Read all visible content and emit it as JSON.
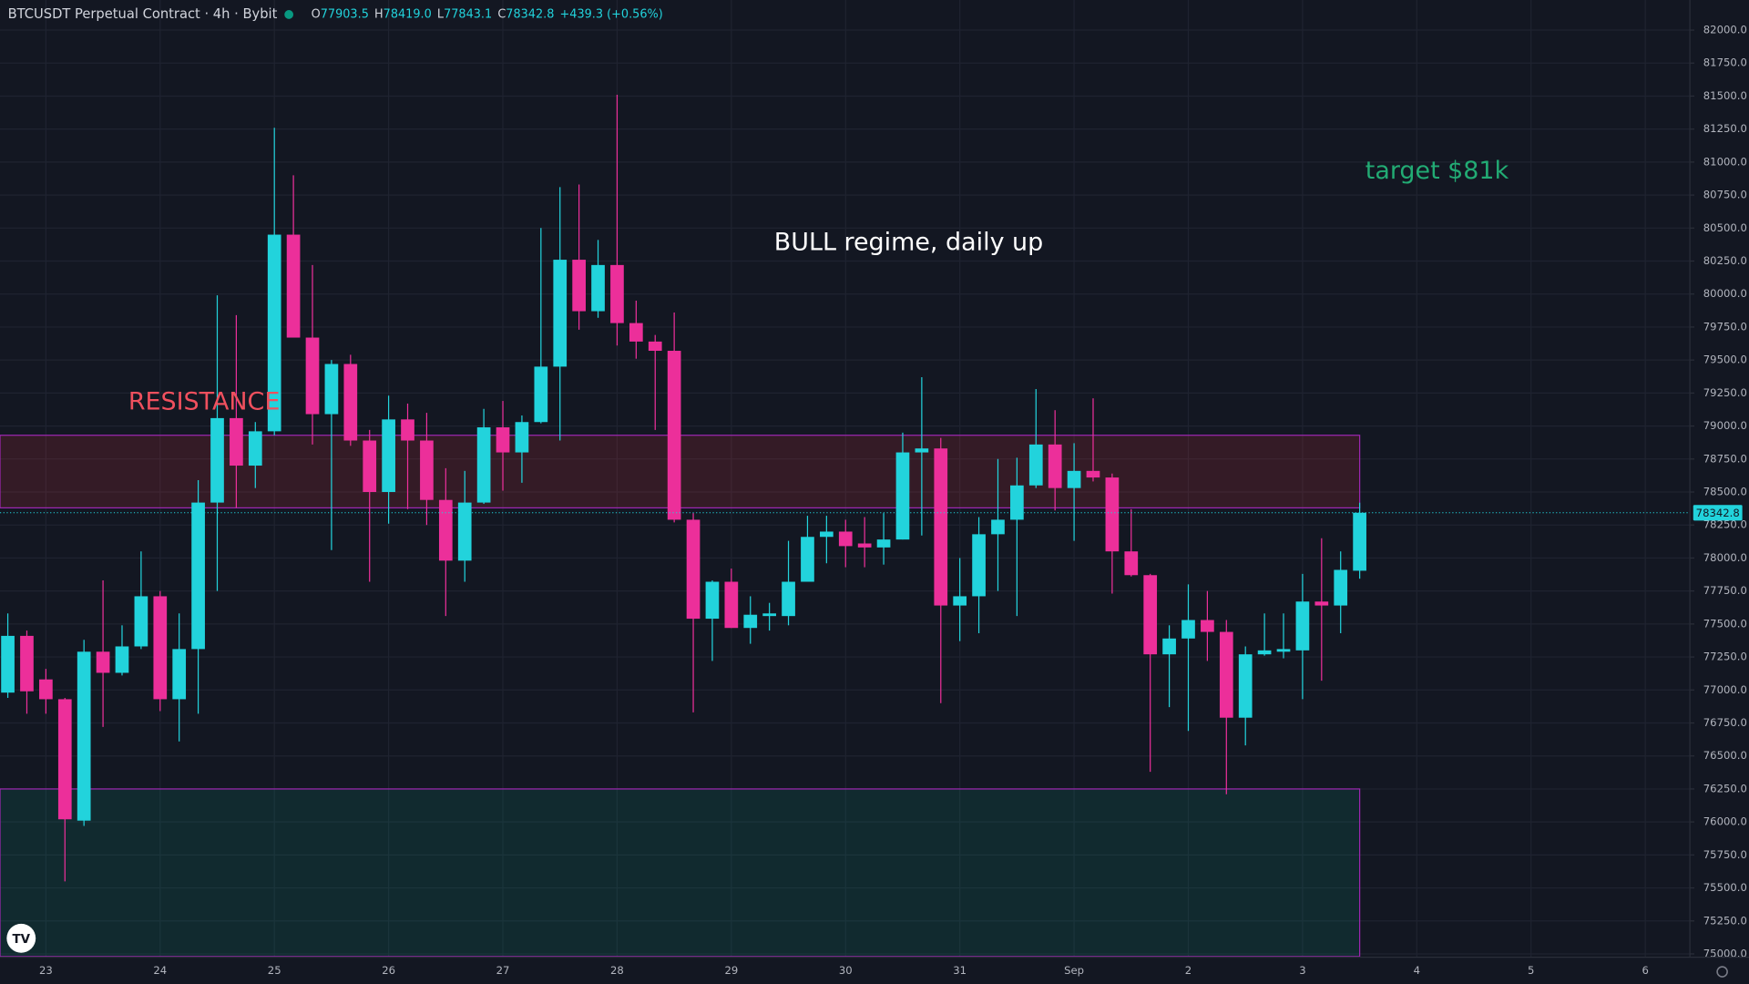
{
  "chart_data": {
    "type": "candlestick",
    "header": {
      "symbol": "BTCUSDT Perpetual Contract · 4h · Bybit",
      "ohlc": [
        {
          "label": "O",
          "value": "77903.5"
        },
        {
          "label": "H",
          "value": "78419.0"
        },
        {
          "label": "L",
          "value": "77843.1"
        },
        {
          "label": "C",
          "value": "78342.8"
        }
      ],
      "change": "+439.3 (+0.56%)"
    },
    "categories": [
      "23",
      "24",
      "25",
      "26",
      "27",
      "28",
      "29",
      "30",
      "31",
      "Sep",
      "2",
      "3",
      "4",
      "5",
      "6"
    ],
    "open": [
      76980,
      77410,
      77080,
      76930,
      76010,
      77290,
      77130,
      77330,
      77710,
      76930,
      77310,
      78420,
      79060,
      78700,
      78960,
      80450,
      79670,
      79090,
      79470,
      78890,
      78500,
      79050,
      78890,
      78440,
      77980,
      78420,
      78990,
      78800,
      79030,
      79450,
      80260,
      79870,
      80220,
      79780,
      79640,
      79570,
      78290,
      77540,
      77820,
      77470,
      77560,
      77560,
      77820,
      78160,
      78200,
      78110,
      78080,
      78140,
      78800,
      78830,
      77640,
      77710,
      78180,
      78290,
      78550,
      78860,
      78530,
      78660,
      78610,
      78050,
      77870,
      77270,
      77390,
      77530,
      77440,
      76790,
      77270,
      77290,
      77300,
      77670,
      77640,
      77903.5
    ],
    "high": [
      77580,
      77450,
      77160,
      76940,
      77380,
      77830,
      77490,
      78050,
      77750,
      77580,
      78590,
      79990,
      79840,
      79030,
      81260,
      80900,
      80220,
      79500,
      79540,
      78970,
      79230,
      79170,
      79100,
      78680,
      78660,
      79130,
      79190,
      79080,
      80500,
      80810,
      80830,
      80410,
      81510,
      79950,
      79690,
      79860,
      78340,
      77830,
      77920,
      77710,
      77660,
      78130,
      78320,
      78320,
      78290,
      78310,
      78340,
      78950,
      79370,
      78910,
      78000,
      78310,
      78750,
      78760,
      79280,
      79120,
      78870,
      79210,
      78640,
      78370,
      77880,
      77490,
      77800,
      77750,
      77530,
      77330,
      77580,
      77580,
      77880,
      78150,
      78050,
      78419.0
    ],
    "low": [
      76940,
      76820,
      76820,
      75550,
      75970,
      76720,
      77110,
      77310,
      76840,
      76610,
      76820,
      77750,
      78380,
      78530,
      78930,
      79670,
      78860,
      78060,
      78850,
      77820,
      78260,
      78370,
      78250,
      77560,
      77820,
      78410,
      78510,
      78570,
      79020,
      78890,
      79730,
      79820,
      79610,
      79510,
      78970,
      78270,
      76830,
      77220,
      77470,
      77350,
      77450,
      77490,
      77820,
      77960,
      77930,
      77930,
      77950,
      78140,
      78170,
      76900,
      77370,
      77430,
      77750,
      77560,
      78530,
      78360,
      78130,
      78580,
      77730,
      77860,
      76380,
      76870,
      76690,
      77220,
      76210,
      76580,
      77260,
      77240,
      76930,
      77070,
      77430,
      77843.1
    ],
    "close": [
      77410,
      76990,
      76930,
      76020,
      77290,
      77130,
      77330,
      77710,
      76930,
      77310,
      78420,
      79060,
      78700,
      78960,
      80450,
      79670,
      79090,
      79470,
      78890,
      78500,
      79050,
      78890,
      78440,
      77980,
      78420,
      78990,
      78800,
      79030,
      79450,
      80260,
      79870,
      80220,
      79780,
      79640,
      79570,
      78290,
      77540,
      77820,
      77470,
      77570,
      77580,
      77820,
      78160,
      78200,
      78090,
      78080,
      78140,
      78800,
      78830,
      77640,
      77710,
      78180,
      78290,
      78550,
      78860,
      78530,
      78660,
      78610,
      78050,
      77870,
      77270,
      77390,
      77530,
      77440,
      76790,
      77270,
      77300,
      77310,
      77670,
      77640,
      77910,
      78342.8
    ],
    "up_color": "#22d3dc",
    "down_color": "#ec2f9a",
    "ylim": [
      74975,
      82228
    ],
    "yticks": [
      {
        "value": 75000,
        "label": "75000.0"
      },
      {
        "value": 75250,
        "label": "75250.0"
      },
      {
        "value": 75500,
        "label": "75500.0"
      },
      {
        "value": 75750,
        "label": "75750.0"
      },
      {
        "value": 76000,
        "label": "76000.0"
      },
      {
        "value": 76250,
        "label": "76250.0"
      },
      {
        "value": 76500,
        "label": "76500.0"
      },
      {
        "value": 76750,
        "label": "76750.0"
      },
      {
        "value": 77000,
        "label": "77000.0"
      },
      {
        "value": 77250,
        "label": "77250.0"
      },
      {
        "value": 77500,
        "label": "77500.0"
      },
      {
        "value": 77750,
        "label": "77750.0"
      },
      {
        "value": 78000,
        "label": "78000.0"
      },
      {
        "value": 78250,
        "label": "78250.0"
      },
      {
        "value": 78500,
        "label": "78500.0"
      },
      {
        "value": 78750,
        "label": "78750.0"
      },
      {
        "value": 79000,
        "label": "79000.0"
      },
      {
        "value": 79250,
        "label": "79250.0"
      },
      {
        "value": 79500,
        "label": "79500.0"
      },
      {
        "value": 79750,
        "label": "79750.0"
      },
      {
        "value": 80000,
        "label": "80000.0"
      },
      {
        "value": 80250,
        "label": "80250.0"
      },
      {
        "value": 80500,
        "label": "80500.0"
      },
      {
        "value": 80750,
        "label": "80750.0"
      },
      {
        "value": 81000,
        "label": "81000.0"
      },
      {
        "value": 81250,
        "label": "81250.0"
      },
      {
        "value": 81500,
        "label": "81500.0"
      },
      {
        "value": 81750,
        "label": "81750.0"
      },
      {
        "value": 82000,
        "label": "82000.0"
      }
    ],
    "grid": true,
    "last_price": {
      "value": 78342.8,
      "label": "78342.8"
    },
    "zones": [
      {
        "low": 78380,
        "high": 78930,
        "color": "#f23645"
      },
      {
        "low": 74980,
        "high": 76250,
        "color": "#089981"
      }
    ],
    "annotations": [
      {
        "text": "RESISTANCE",
        "color": "#f0505e"
      },
      {
        "text": "BULL regime, daily up",
        "color": "#ffffff"
      },
      {
        "text": "target $81k",
        "color": "#22ab74"
      }
    ]
  }
}
